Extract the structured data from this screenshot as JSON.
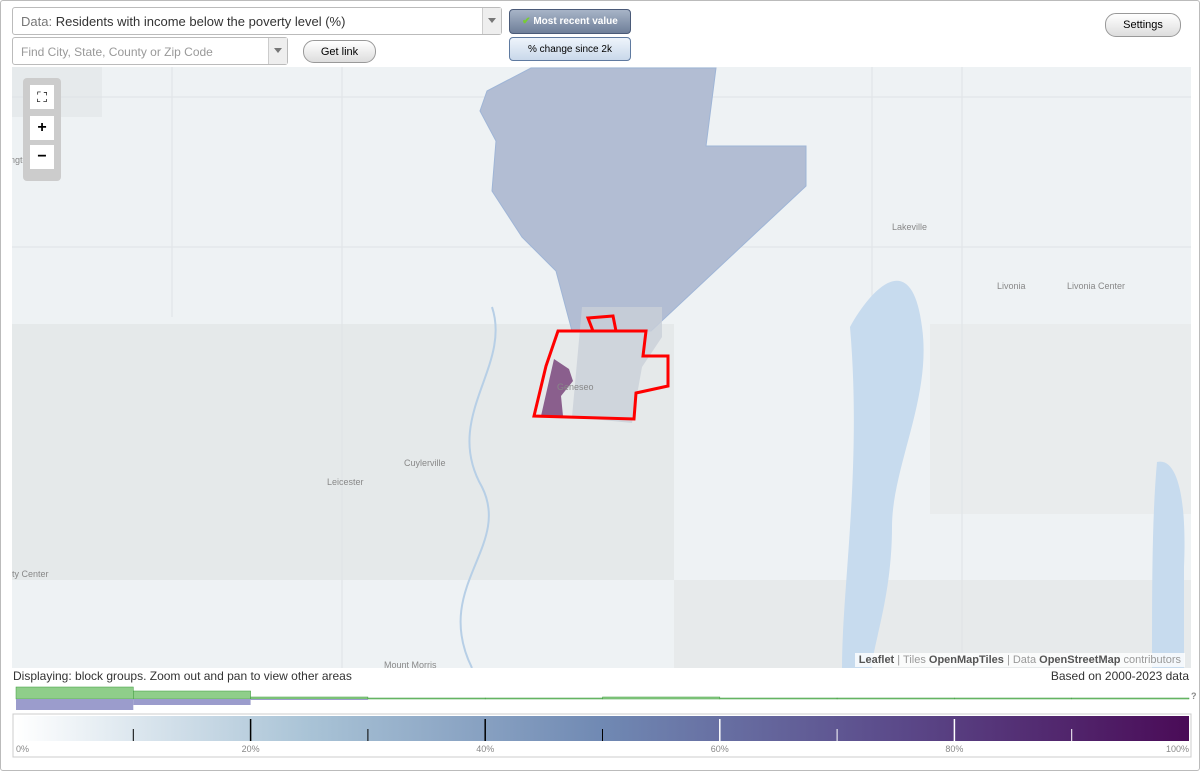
{
  "data_select": {
    "label": "Data:",
    "value": "Residents with income below the poverty level (%)"
  },
  "search": {
    "placeholder": "Find City, State, County or Zip Code"
  },
  "buttons": {
    "get_link": "Get link",
    "most_recent": "Most recent value",
    "change": "% change since 2k",
    "settings": "Settings"
  },
  "map_labels": [
    {
      "text": "Lakeville"
    },
    {
      "text": "Livonia"
    },
    {
      "text": "Livonia Center"
    },
    {
      "text": "Geneseo"
    },
    {
      "text": "Cuylerville"
    },
    {
      "text": "Leicester"
    },
    {
      "text": "Mount Morris"
    },
    {
      "text": "ngto"
    },
    {
      "text": "ity Center"
    }
  ],
  "attribution": [
    "Leaflet",
    "| Tiles",
    "OpenMapTiles",
    "| Data",
    "OpenStreetMap",
    "contributors"
  ],
  "status": "Displaying: block groups. Zoom out and pan to view other areas",
  "data_range": "Based on 2000-2023 data",
  "histogram": {
    "bins": [
      0,
      10,
      20,
      30,
      40,
      50,
      60,
      70,
      80,
      90,
      100
    ],
    "most_recent": [
      12,
      8,
      2,
      1,
      1,
      2,
      1,
      1,
      1,
      1
    ],
    "change": [
      11,
      6,
      1,
      0,
      0,
      0,
      0,
      0,
      0,
      0
    ],
    "unknown": "?"
  },
  "legend": {
    "ticks": [
      {
        "value": 0,
        "label": "0%"
      },
      {
        "value": 20,
        "label": "20%"
      },
      {
        "value": 40,
        "label": "40%"
      },
      {
        "value": 60,
        "label": "60%"
      },
      {
        "value": 80,
        "label": "80%"
      },
      {
        "value": 100,
        "label": "100%"
      }
    ],
    "minor_ticks": [
      10,
      30,
      50,
      70,
      90
    ],
    "colors": [
      "#ffffff",
      "#a9c3d6",
      "#7089b3",
      "#5b4a8a",
      "#4a0b57"
    ]
  }
}
